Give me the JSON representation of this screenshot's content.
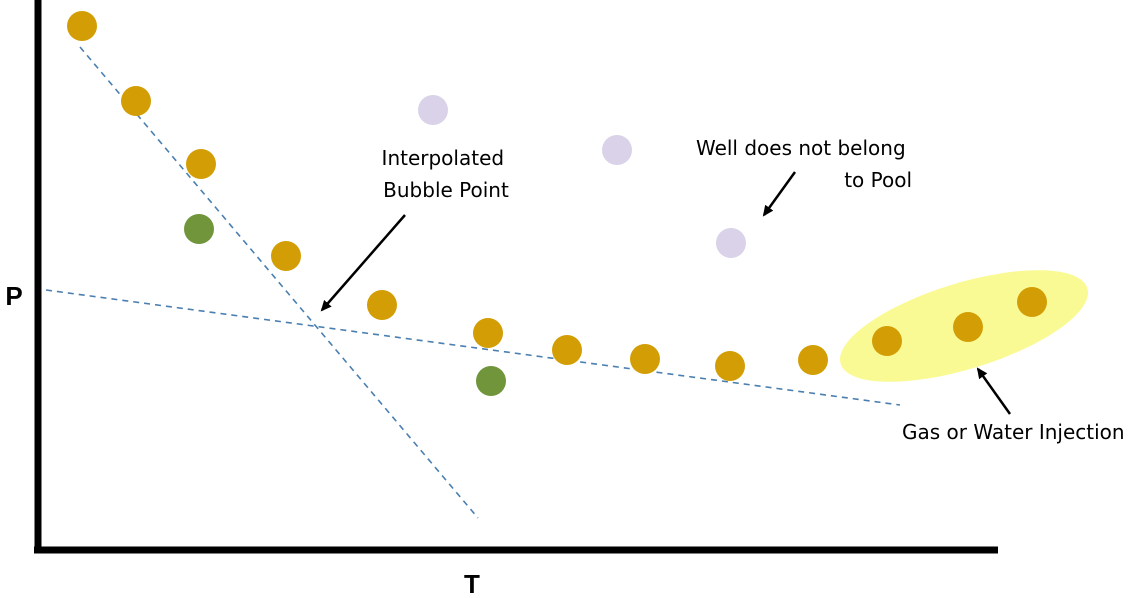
{
  "axes": {
    "x_label": "T",
    "y_label": "P"
  },
  "annotations": {
    "bubble_point": [
      "Interpolated",
      "Bubble Point"
    ],
    "outlier_wells": [
      "Well does not belong",
      "to Pool"
    ],
    "injection": [
      "Gas or Water Injection"
    ]
  },
  "point_groups": [
    {
      "group": "pool-wells",
      "color": "#d39e05",
      "count": 14
    },
    {
      "group": "other-wells",
      "color": "#70953a",
      "count": 2
    },
    {
      "group": "not-in-pool-wells",
      "color": "#d9d2e9",
      "count": 3
    }
  ],
  "colors": {
    "axis": "#000000",
    "trend_line": "#4a7fb0",
    "injection_highlight": "#fafa94"
  }
}
